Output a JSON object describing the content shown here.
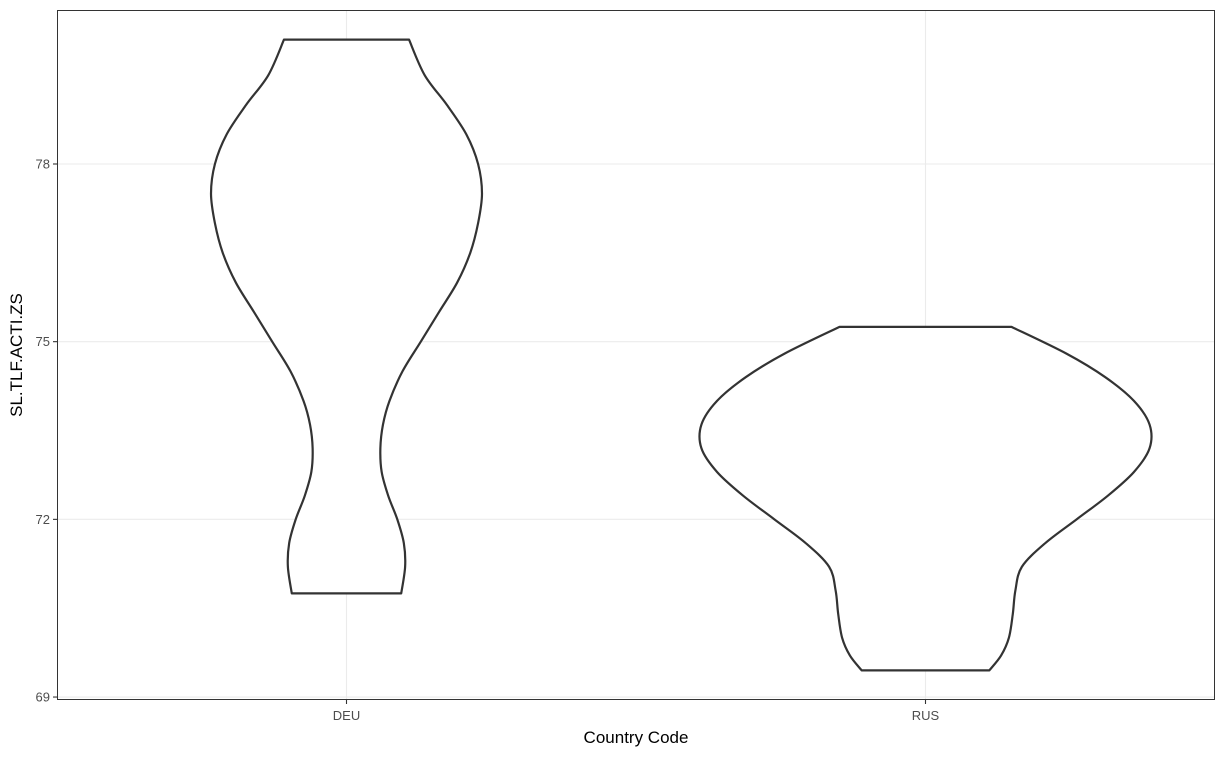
{
  "chart_data": {
    "type": "violin",
    "title": "",
    "xlabel": "Country Code",
    "ylabel": "SL.TLF.ACTI.ZS",
    "categories": [
      "DEU",
      "RUS"
    ],
    "ylim": [
      68.95,
      80.6
    ],
    "yticks": [
      69,
      72,
      75,
      78
    ],
    "ytick_labels": [
      "69",
      "72",
      "75",
      "78"
    ],
    "grid": true,
    "series": [
      {
        "name": "DEU",
        "min": 70.75,
        "max": 80.1,
        "profile": [
          [
            70.75,
            0.21
          ],
          [
            71.2,
            0.225
          ],
          [
            71.6,
            0.22
          ],
          [
            72.0,
            0.195
          ],
          [
            72.4,
            0.16
          ],
          [
            72.8,
            0.135
          ],
          [
            73.2,
            0.13
          ],
          [
            73.6,
            0.14
          ],
          [
            74.0,
            0.165
          ],
          [
            74.5,
            0.215
          ],
          [
            75.0,
            0.285
          ],
          [
            75.5,
            0.355
          ],
          [
            76.0,
            0.425
          ],
          [
            76.5,
            0.475
          ],
          [
            77.0,
            0.505
          ],
          [
            77.5,
            0.52
          ],
          [
            78.0,
            0.505
          ],
          [
            78.5,
            0.46
          ],
          [
            79.0,
            0.385
          ],
          [
            79.5,
            0.3
          ],
          [
            80.1,
            0.24
          ]
        ]
      },
      {
        "name": "RUS",
        "min": 69.45,
        "max": 75.25,
        "profile": [
          [
            69.45,
            0.245
          ],
          [
            69.7,
            0.29
          ],
          [
            70.0,
            0.32
          ],
          [
            70.4,
            0.335
          ],
          [
            70.8,
            0.345
          ],
          [
            71.2,
            0.37
          ],
          [
            71.6,
            0.46
          ],
          [
            72.0,
            0.58
          ],
          [
            72.4,
            0.7
          ],
          [
            72.8,
            0.8
          ],
          [
            73.2,
            0.86
          ],
          [
            73.6,
            0.86
          ],
          [
            74.0,
            0.8
          ],
          [
            74.4,
            0.69
          ],
          [
            74.8,
            0.54
          ],
          [
            75.25,
            0.33
          ]
        ]
      }
    ]
  }
}
